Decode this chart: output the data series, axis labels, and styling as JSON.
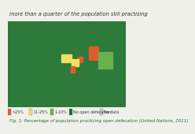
{
  "title": "more than a quarter of the population still practising",
  "caption": "Fig. 1: Percentage of population practicing open defecation (United Nations, 2011)",
  "legend_items": [
    {
      "label": ">25%",
      "color": "#e05c2a"
    },
    {
      "label": "11-25%",
      "color": "#f0e060"
    },
    {
      "label": "1-10%",
      "color": "#6ab04c"
    },
    {
      "label": "No open defecation",
      "color": "#1a6b2a"
    },
    {
      "label": "No data",
      "color": "#cccccc"
    }
  ],
  "background_color": "#f0f0eb",
  "ocean_color": "#b8d8e8",
  "title_color": "#333333",
  "caption_color": "#2a6b2a",
  "title_fontsize": 4.8,
  "caption_fontsize": 4.0,
  "legend_fontsize": 3.5,
  "country_categories": {
    "USA": "none",
    "CAN": "none",
    "MEX": "none",
    "BRA": "none",
    "ARG": "none",
    "CHL": "none",
    "COL": "none",
    "VEN": "none",
    "PER": "none",
    "ECU": "none",
    "BOL": "none",
    "PRY": "none",
    "URY": "none",
    "GUY": "none",
    "SUR": "none",
    "TTO": "none",
    "PAN": "none",
    "CRI": "none",
    "NIC": "none",
    "HND": "none",
    "GTM": "none",
    "BLZ": "none",
    "SLV": "none",
    "DOM": "none",
    "CUB": "none",
    "JAM": "none",
    "HTI": "none",
    "GBR": "none",
    "FRA": "none",
    "DEU": "none",
    "ITA": "none",
    "ESP": "none",
    "PRT": "none",
    "NLD": "none",
    "BEL": "none",
    "CHE": "none",
    "AUT": "none",
    "POL": "none",
    "CZE": "none",
    "SVK": "none",
    "HUN": "none",
    "ROU": "none",
    "BGR": "none",
    "GRC": "none",
    "SRB": "none",
    "HRV": "none",
    "BIH": "none",
    "MKD": "none",
    "ALB": "none",
    "MNE": "none",
    "SVN": "none",
    "NOR": "none",
    "SWE": "none",
    "FIN": "none",
    "DNK": "none",
    "IRL": "none",
    "ISL": "none",
    "LTU": "none",
    "LVA": "none",
    "EST": "none",
    "BLR": "none",
    "UKR": "none",
    "MDA": "none",
    "RUS": "none",
    "KAZ": "none",
    "UZB": "none",
    "TKM": "none",
    "KGZ": "none",
    "TJK": "none",
    "GEO": "none",
    "ARM": "none",
    "AZE": "none",
    "TUR": "none",
    "IRN": "none",
    "ISR": "none",
    "JOR": "none",
    "LBN": "none",
    "SYR": "none",
    "IRQ": "none",
    "KWT": "none",
    "SAU": "none",
    "ARE": "none",
    "QAT": "none",
    "BHR": "none",
    "OMN": "none",
    "YEM": "nodata",
    "CHN": "none",
    "JPN": "none",
    "KOR": "none",
    "PRK": "none",
    "MNG": "none",
    "TWN": "none",
    "VNM": "1-10",
    "THA": "none",
    "MYS": "none",
    "IDN": "1-10",
    "PHL": "1-10",
    "MMR": "1-10",
    "KHM": "1-10",
    "LAO": "1-10",
    "BGD": ">25",
    "IND": ">25",
    "NPL": ">25",
    "PAK": "11-25",
    "AFG": "11-25",
    "LKA": "none",
    "AUS": "none",
    "NZL": "none",
    "PNG": "1-10",
    "ZAF": "none",
    "NAM": "none",
    "BWA": "none",
    "ZWE": "1-10",
    "ZMB": "1-10",
    "MOZ": "1-10",
    "TZA": "1-10",
    "KEN": "none",
    "MDG": "1-10",
    "UGA": "11-25",
    "RWA": "1-10",
    "BDI": "1-10",
    "AGO": ">25",
    "MWI": ">25",
    "SWZ": "none",
    "LSO": "none",
    "GAB": "none",
    "COG": "none",
    "COD": "11-25",
    "CMR": "11-25",
    "CAF": ">25",
    "TCD": ">25",
    "SDN": "nodata",
    "SSD": "nodata",
    "ETH": ">25",
    "SOM": "nodata",
    "ERI": ">25",
    "DJI": "nodata",
    "GHA": "1-10",
    "CIV": "11-25",
    "SEN": "11-25",
    "GMB": "nodata",
    "GNB": ">25",
    "GIN": ">25",
    "SLE": ">25",
    "LBR": ">25",
    "MLI": "11-25",
    "BFA": ">25",
    "NER": ">25",
    "NGA": "11-25",
    "BEN": ">25",
    "TGO": "1-10",
    "GNQ": "nodata",
    "MRT": "nodata",
    "MAR": "none",
    "DZA": "none",
    "TUN": "none",
    "LBY": "none",
    "EGY": "none",
    "GUF": "none"
  },
  "color_map": {
    ">25": "#e05c2a",
    "11-25": "#f0e060",
    "1-10": "#6ab04c",
    "none": "#2d7a3a",
    "nodata": "#c8c8c8"
  }
}
